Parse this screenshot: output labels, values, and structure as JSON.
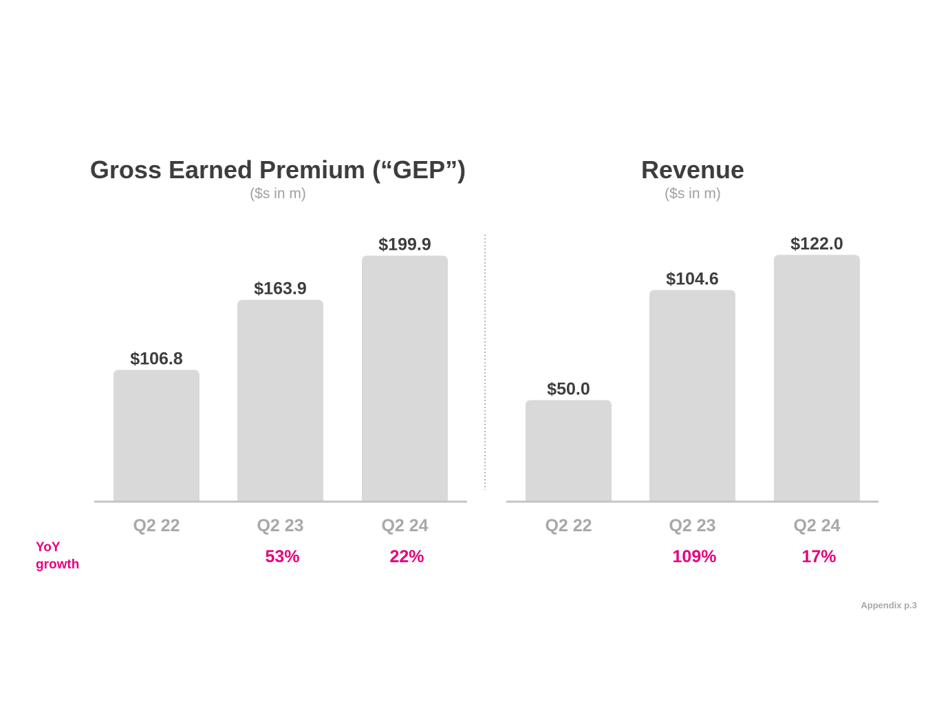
{
  "colors": {
    "bar": "#d9d9d9",
    "axis": "#c4c4c4",
    "divider": "#b5b5b5",
    "accent": "#e6007e",
    "title": "#3d3d3d",
    "muted": "#a8a8a8"
  },
  "yoy_label": "YoY growth",
  "footer": "Appendix p.3",
  "chart_data": [
    {
      "type": "bar",
      "title": "Gross Earned Premium (“GEP”)",
      "subtitle": "($s in m)",
      "categories": [
        "Q2 22",
        "Q2 23",
        "Q2 24"
      ],
      "values": [
        106.8,
        163.9,
        199.9
      ],
      "value_labels": [
        "$106.8",
        "$163.9",
        "$199.9"
      ],
      "yoy_growth": [
        "",
        "53%",
        "22%"
      ],
      "ylim": [
        0,
        240
      ],
      "xlabel": "",
      "ylabel": ""
    },
    {
      "type": "bar",
      "title": "Revenue",
      "subtitle": "($s in m)",
      "categories": [
        "Q2 22",
        "Q2 23",
        "Q2 24"
      ],
      "values": [
        50.0,
        104.6,
        122.0
      ],
      "value_labels": [
        "$50.0",
        "$104.6",
        "$122.0"
      ],
      "yoy_growth": [
        "",
        "109%",
        "17%"
      ],
      "ylim": [
        0,
        146
      ],
      "xlabel": "",
      "ylabel": ""
    }
  ]
}
